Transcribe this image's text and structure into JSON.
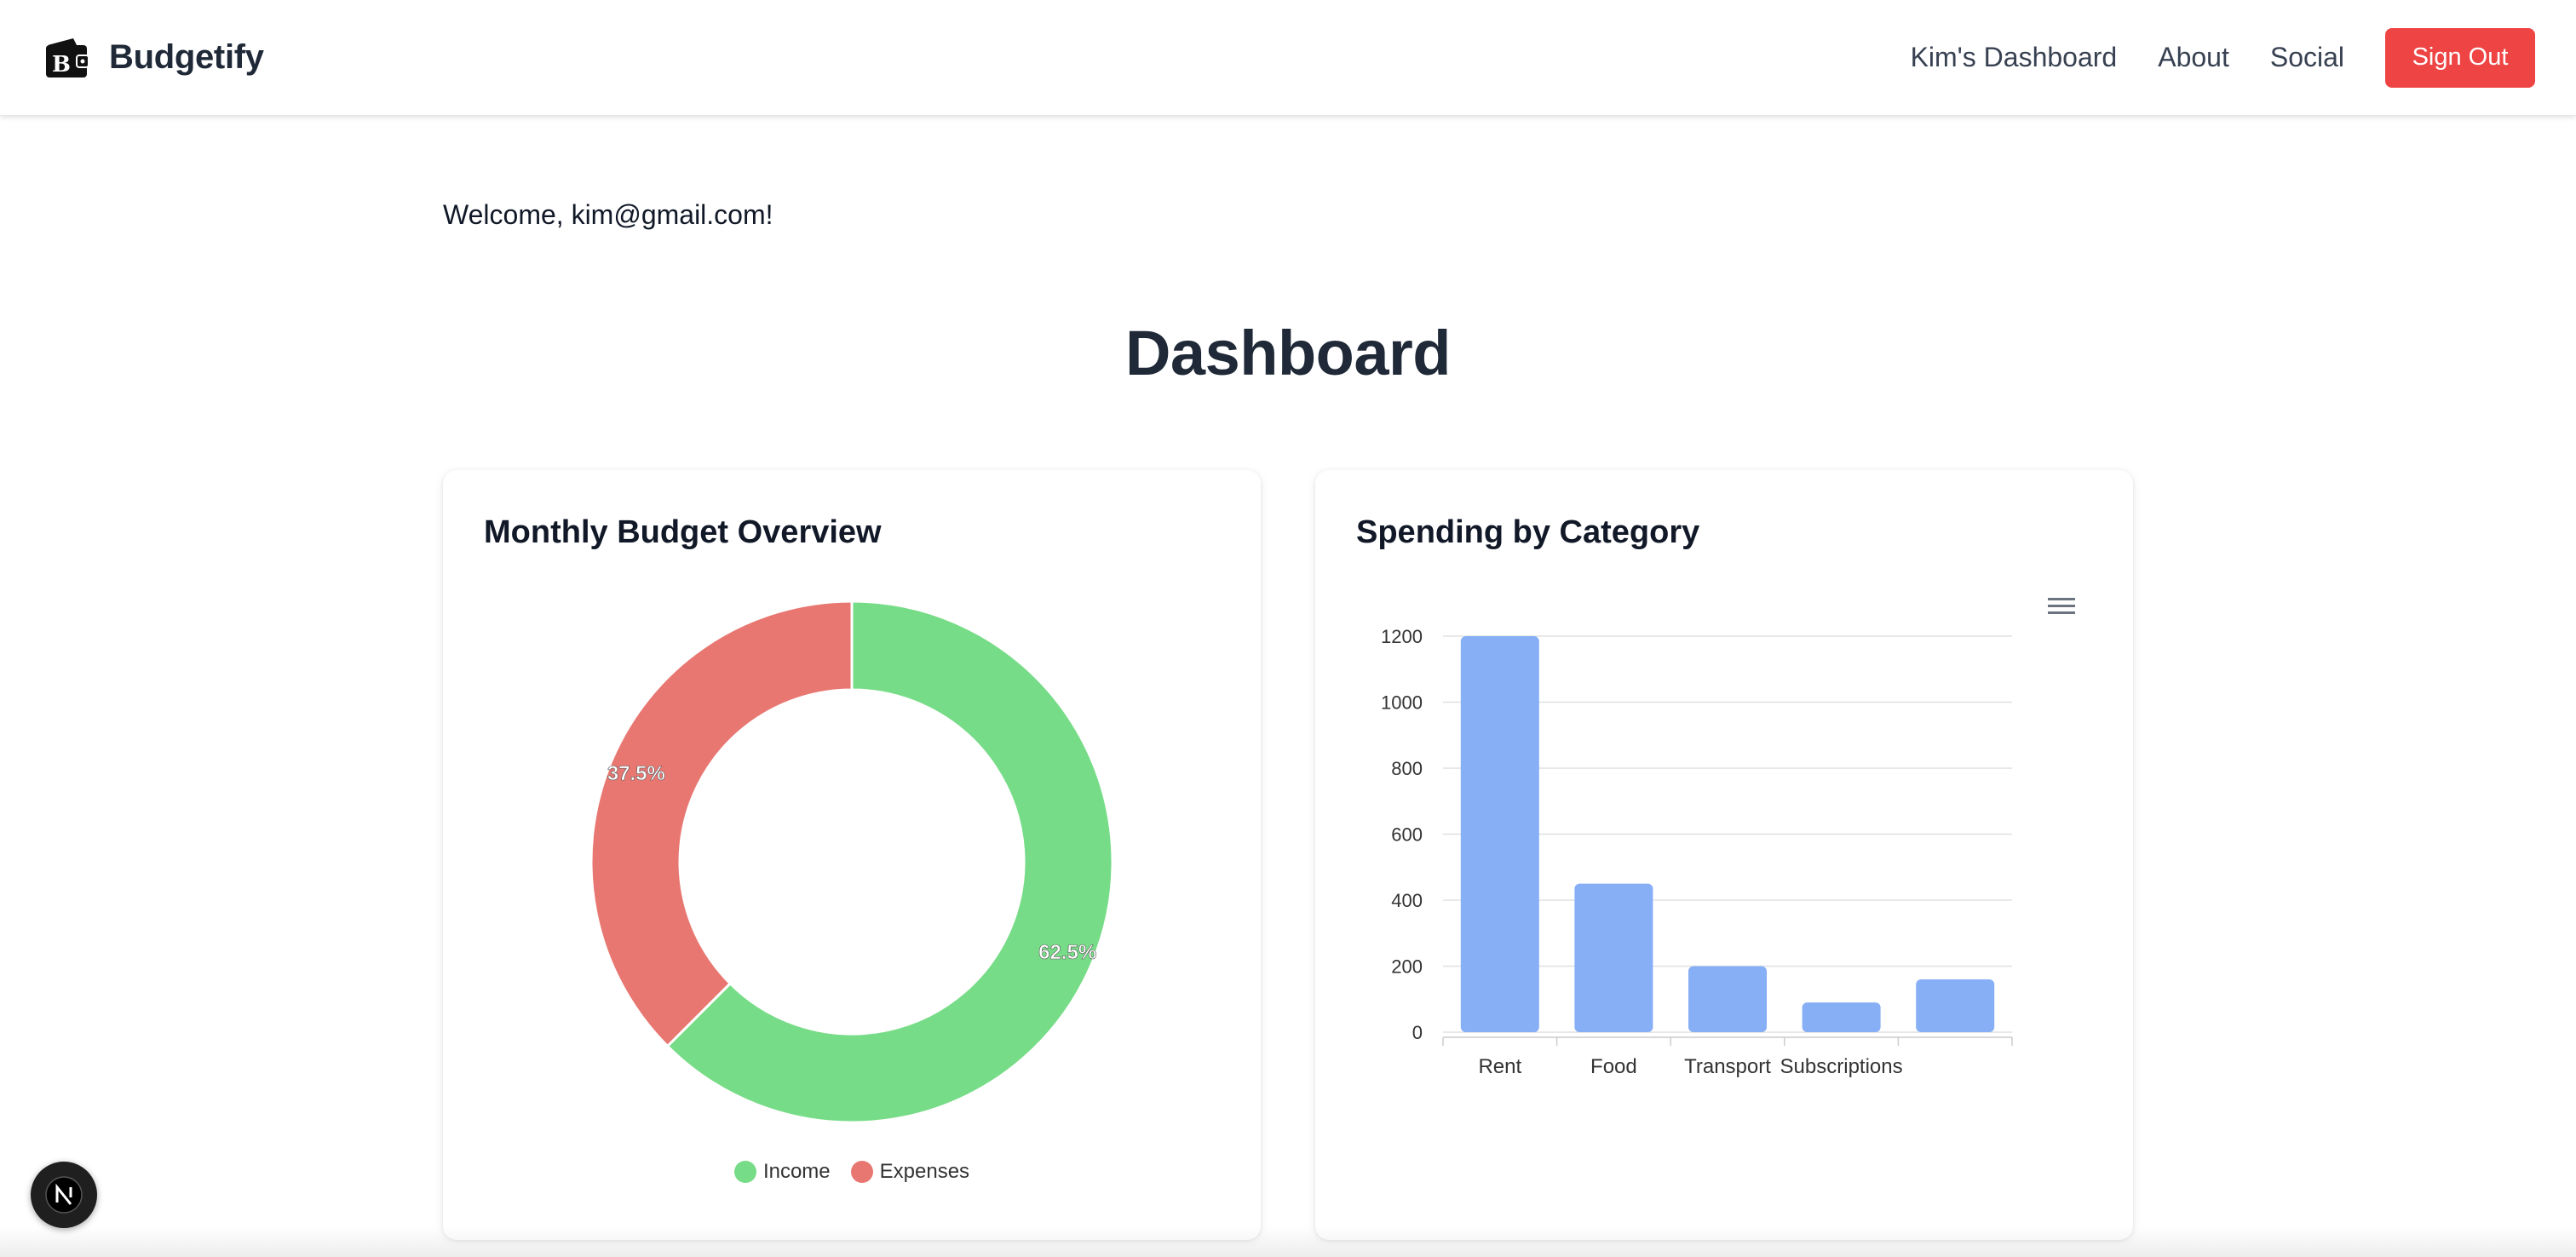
{
  "navbar": {
    "brand": "Budgetify",
    "links": [
      "Kim's Dashboard",
      "About",
      "Social"
    ],
    "signout_label": "Sign Out"
  },
  "welcome_text": "Welcome, kim@gmail.com!",
  "page_title": "Dashboard",
  "cards": {
    "budget": {
      "title": "Monthly Budget Overview"
    },
    "spending": {
      "title": "Spending by Category"
    }
  },
  "colors": {
    "income": "#77dc87",
    "expenses": "#e87772",
    "bars": "#86aff5",
    "signout": "#ef4444"
  },
  "icons": {
    "brand": "wallet-icon",
    "chart_menu": "hamburger-menu-icon",
    "framework": "nextjs-icon"
  },
  "chart_data": [
    {
      "type": "pie",
      "title": "Monthly Budget Overview",
      "labels": [
        "Income",
        "Expenses"
      ],
      "values": [
        62.5,
        37.5
      ],
      "data_labels": [
        "62.5%",
        "37.5%"
      ],
      "legend": "bottom"
    },
    {
      "type": "bar",
      "title": "Spending by Category",
      "categories": [
        "Rent",
        "Food",
        "Transport",
        "Subscriptions",
        ""
      ],
      "values": [
        1200,
        450,
        200,
        90,
        160
      ],
      "yticks": [
        "0",
        "200",
        "400",
        "600",
        "800",
        "1000",
        "1200"
      ],
      "ylim": [
        0,
        1200
      ],
      "grid": true
    }
  ]
}
